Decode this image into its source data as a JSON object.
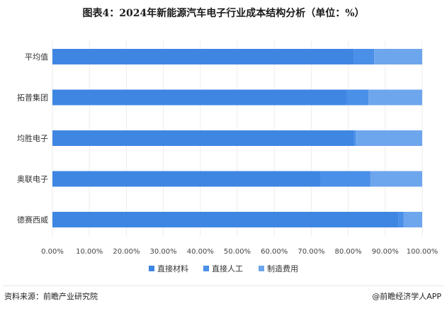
{
  "source_text": "资料来源：前瞻产业研究院",
  "brand_text": "@前瞻经济学人APP",
  "colors": {
    "direct_material": "#3f86e3",
    "direct_labor": "#4a8fe8",
    "manufacturing": "#6ea6ee"
  },
  "chart_data": {
    "type": "bar",
    "orientation": "horizontal",
    "stacked": true,
    "title": "图表4：2024年新能源汽车电子行业成本结构分析（单位：%）",
    "categories": [
      "平均值",
      "拓普集团",
      "均胜电子",
      "奥联电子",
      "德赛西威"
    ],
    "series": [
      {
        "name": "直接材料",
        "values": [
          81.5,
          79.5,
          81.5,
          72.5,
          93.5
        ],
        "color": "#3f86e3"
      },
      {
        "name": "直接人工",
        "values": [
          5.5,
          6.0,
          0.5,
          13.5,
          1.5
        ],
        "color": "#4a8fe8"
      },
      {
        "name": "制造费用",
        "values": [
          13.0,
          14.5,
          18.0,
          14.0,
          5.0
        ],
        "color": "#6ea6ee"
      }
    ],
    "x_ticks": [
      "0.00%",
      "10.00%",
      "20.00%",
      "30.00%",
      "40.00%",
      "50.00%",
      "60.00%",
      "70.00%",
      "80.00%",
      "90.00%",
      "100.00%"
    ],
    "xlim": [
      0,
      100
    ],
    "grid": true,
    "legend_position": "bottom"
  }
}
